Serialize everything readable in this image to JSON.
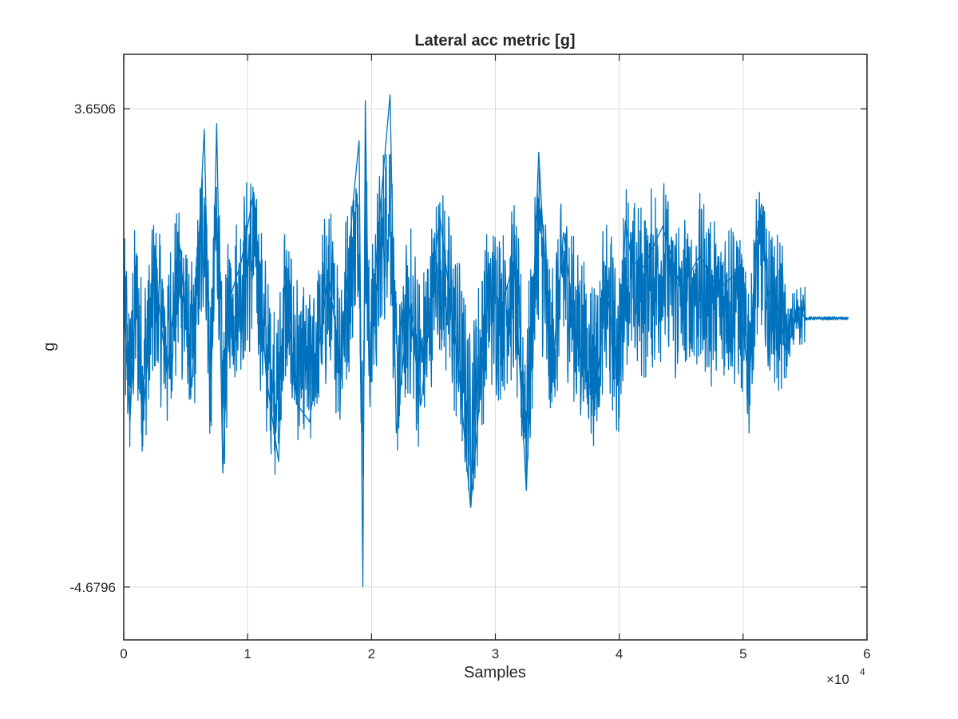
{
  "chart_data": {
    "type": "line",
    "title": "Lateral acc metric [g]",
    "xlabel": "Samples",
    "ylabel": "g",
    "xlim": [
      0,
      60000
    ],
    "ylim": [
      -5.6,
      4.6
    ],
    "xticks": [
      0,
      10000,
      20000,
      30000,
      40000,
      50000,
      60000
    ],
    "xtick_labels": [
      "0",
      "1",
      "2",
      "3",
      "4",
      "5",
      "6"
    ],
    "yticks": [
      -4.6796,
      3.6506
    ],
    "ytick_labels": [
      "-4.6796",
      "3.6506"
    ],
    "x_exponent_base": "×10",
    "x_exponent_power": "4",
    "grid": true,
    "legend": "none",
    "series": [
      {
        "color": "#0072BD",
        "x": [
          0,
          500,
          1000,
          1500,
          2500,
          3500,
          4500,
          5500,
          6500,
          7000,
          7500,
          8000,
          8500,
          9500,
          10500,
          11500,
          12500,
          13000,
          14000,
          15000,
          16500,
          17500,
          18500,
          19000,
          19300,
          19500,
          19800,
          20500,
          21500,
          22000,
          23000,
          24000,
          25500,
          27000,
          28000,
          29500,
          30500,
          31500,
          32500,
          33500,
          34500,
          35500,
          36500,
          38000,
          39000,
          40000,
          40500,
          41000,
          42000,
          43500,
          45000,
          46500,
          48000,
          49500,
          50500,
          51000,
          51500,
          52000,
          52500,
          53500,
          54500,
          55000,
          56000,
          57000,
          57800,
          58500
        ],
        "y": [
          0.2,
          -1.8,
          0.6,
          -1.9,
          0.9,
          -1.0,
          1.3,
          -1.2,
          3.3,
          -1.8,
          3.4,
          -2.7,
          0.3,
          1.0,
          2.2,
          -1.0,
          -2.5,
          0.6,
          -1.5,
          -1.8,
          0.8,
          -0.8,
          2.0,
          3.1,
          -4.68,
          3.8,
          -1.0,
          1.4,
          3.9,
          -2.0,
          0.3,
          -1.5,
          1.8,
          -0.8,
          -3.3,
          0.6,
          0.2,
          1.0,
          -3.0,
          2.9,
          -1.2,
          1.5,
          -0.3,
          -1.5,
          0.5,
          -1.2,
          1.7,
          1.0,
          0.9,
          1.6,
          0.5,
          1.1,
          0.5,
          0.8,
          -1.2,
          1.3,
          2.0,
          0.4,
          0.6,
          -0.6,
          0.2,
          0.0,
          0.0,
          0.0,
          0.0,
          0.0
        ]
      }
    ]
  }
}
